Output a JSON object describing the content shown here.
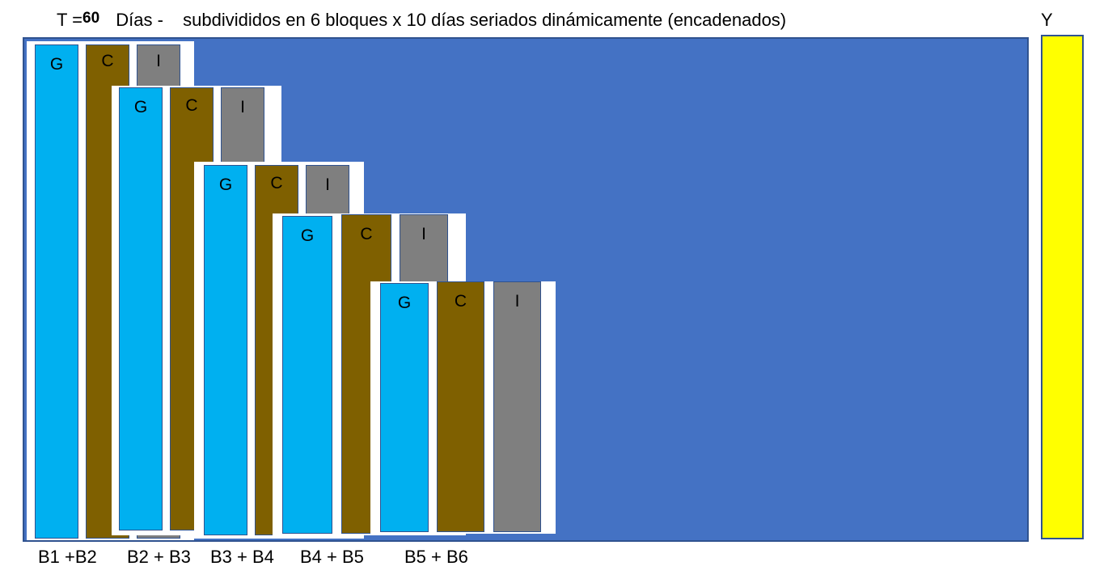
{
  "header": {
    "t_prefix": "T =",
    "t_value": "60",
    "unit": "Días",
    "separator": "-",
    "description": "subdivididos en 6 bloques x 10 días seriados dinámicamente (encadenados)"
  },
  "y_label": "Y",
  "bar_labels": {
    "g": "G",
    "c": "C",
    "i": "I"
  },
  "blocks": [
    {
      "label": "B1 +B2"
    },
    {
      "label": "B2 + B3"
    },
    {
      "label": "B3 + B4"
    },
    {
      "label": "B4 + B5"
    },
    {
      "label": "B5 + B6"
    }
  ],
  "colors": {
    "panel": "#4472c4",
    "y_bar": "#ffff00",
    "g": "#00b0f0",
    "c": "#7f6000",
    "i": "#7f7f7f",
    "border": "#2f528f"
  }
}
